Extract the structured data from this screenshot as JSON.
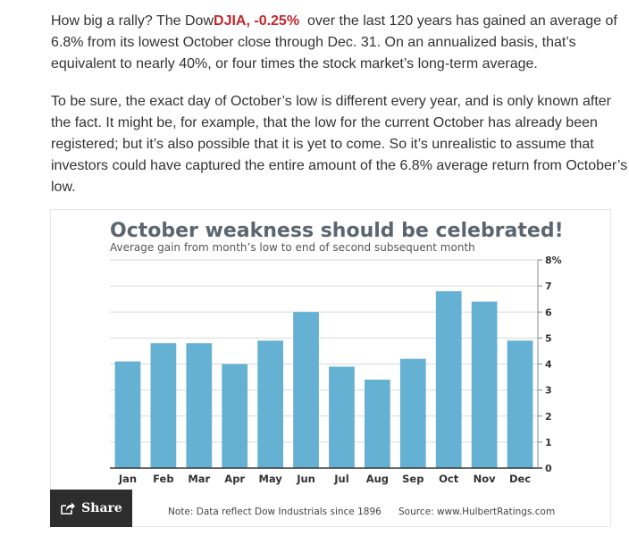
{
  "article": {
    "p1": {
      "before": "How big a rally? The Dow",
      "ticker": "DJIA, -0.25%",
      "after": "  over the last 120 years has gained an average of 6.8% from its lowest October close through Dec. 31. On an annualized basis, that’s equivalent to nearly 40%, or four times the stock market’s long-term average."
    },
    "p2": "To be sure, the exact day of October’s low is different every year, and is only known after the fact. It might be, for example, that the low for the current October has already been registered; but it’s also possible that it is yet to come. So it’s unrealistic to assume that investors could have captured the entire amount of the 6.8% average return from October’s low."
  },
  "share": {
    "label": "Share",
    "icon": "share-icon"
  },
  "colors": {
    "bar": "#65b1d3",
    "ticker": "#c2272d",
    "title": "#5b6670",
    "share_bg": "#2d2d2d"
  },
  "chart_data": {
    "type": "bar",
    "title": "October weakness should be celebrated!",
    "subtitle": "Average gain from month’s low to end of second subsequent month",
    "categories": [
      "Jan",
      "Feb",
      "Mar",
      "Apr",
      "May",
      "Jun",
      "Jul",
      "Aug",
      "Sep",
      "Oct",
      "Nov",
      "Dec"
    ],
    "values": [
      4.1,
      4.8,
      4.8,
      4.0,
      4.9,
      6.0,
      3.9,
      3.4,
      4.2,
      6.8,
      6.4,
      4.9
    ],
    "yticks": [
      "0",
      "1",
      "2",
      "3",
      "4",
      "5",
      "6",
      "7",
      "8%"
    ],
    "ylim": [
      0,
      8
    ],
    "y_axis_side": "right",
    "grid": true,
    "xlabel": "",
    "ylabel": "",
    "note": "Note: Data reflect Dow Industrials since 1896",
    "source": "Source: www.HulbertRatings.com"
  }
}
